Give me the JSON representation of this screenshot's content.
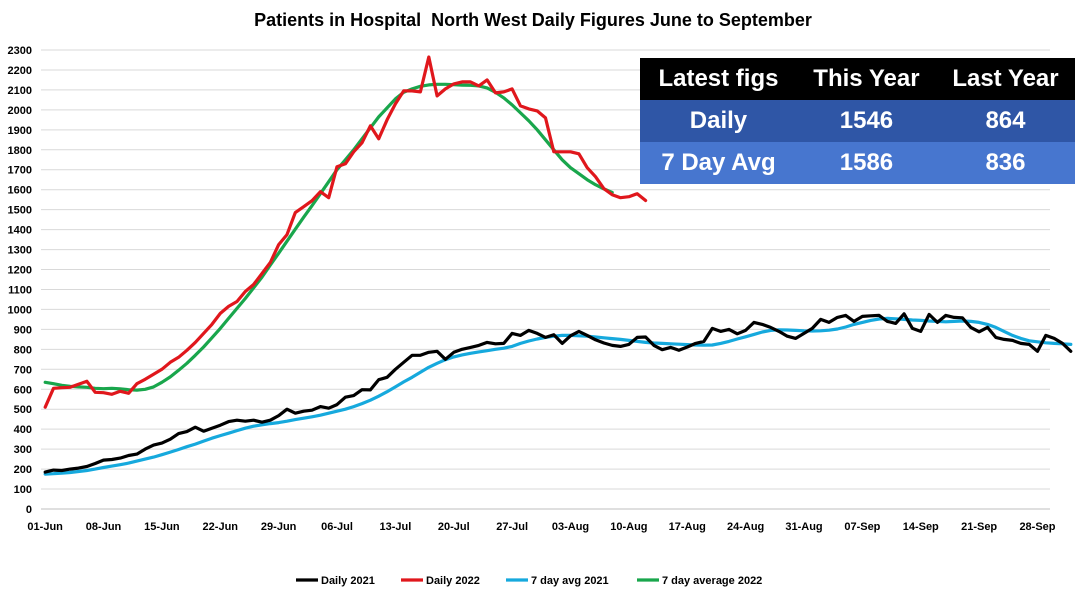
{
  "chart_data": {
    "type": "line",
    "title": "Patients in Hospital  North West Daily Figures June to September",
    "xlabel": "",
    "ylabel": "",
    "ylim": [
      0,
      2300
    ],
    "y_ticks": [
      0,
      100,
      200,
      300,
      400,
      500,
      600,
      700,
      800,
      900,
      1000,
      1100,
      1200,
      1300,
      1400,
      1500,
      1600,
      1700,
      1800,
      1900,
      2000,
      2100,
      2200,
      2300
    ],
    "x_ticks": [
      {
        "day": 0,
        "label": "01-Jun"
      },
      {
        "day": 7,
        "label": "08-Jun"
      },
      {
        "day": 14,
        "label": "15-Jun"
      },
      {
        "day": 21,
        "label": "22-Jun"
      },
      {
        "day": 28,
        "label": "29-Jun"
      },
      {
        "day": 35,
        "label": "06-Jul"
      },
      {
        "day": 42,
        "label": "13-Jul"
      },
      {
        "day": 49,
        "label": "20-Jul"
      },
      {
        "day": 56,
        "label": "27-Jul"
      },
      {
        "day": 63,
        "label": "03-Aug"
      },
      {
        "day": 70,
        "label": "10-Aug"
      },
      {
        "day": 77,
        "label": "17-Aug"
      },
      {
        "day": 84,
        "label": "24-Aug"
      },
      {
        "day": 91,
        "label": "31-Aug"
      },
      {
        "day": 98,
        "label": "07-Sep"
      },
      {
        "day": 105,
        "label": "14-Sep"
      },
      {
        "day": 112,
        "label": "21-Sep"
      },
      {
        "day": 119,
        "label": "28-Sep"
      }
    ],
    "x_days_total": 121,
    "grid": true,
    "legend_position": "bottom",
    "series": [
      {
        "name": "Daily 2021",
        "color": "#000000",
        "values": [
          185,
          195,
          193,
          200,
          205,
          213,
          228,
          245,
          248,
          255,
          268,
          275,
          300,
          320,
          330,
          350,
          378,
          388,
          410,
          390,
          405,
          420,
          438,
          445,
          440,
          445,
          435,
          445,
          468,
          500,
          480,
          490,
          495,
          513,
          505,
          523,
          560,
          568,
          598,
          597,
          648,
          660,
          700,
          735,
          770,
          770,
          785,
          790,
          750,
          785,
          800,
          810,
          820,
          835,
          828,
          830,
          880,
          870,
          895,
          880,
          860,
          873,
          830,
          868,
          890,
          870,
          848,
          832,
          820,
          815,
          825,
          860,
          862,
          820,
          798,
          810,
          795,
          812,
          830,
          840,
          905,
          890,
          900,
          878,
          895,
          935,
          925,
          910,
          890,
          866,
          855,
          880,
          905,
          950,
          935,
          960,
          970,
          940,
          965,
          968,
          970,
          940,
          930,
          978,
          905,
          890,
          975,
          935,
          970,
          960,
          958,
          910,
          888,
          910,
          860,
          850,
          845,
          830,
          825,
          790,
          870,
          855,
          830,
          790
        ]
      },
      {
        "name": "Daily 2022",
        "color": "#e0171c",
        "values": [
          510,
          605,
          608,
          610,
          625,
          640,
          585,
          583,
          575,
          590,
          580,
          628,
          650,
          675,
          700,
          735,
          760,
          795,
          835,
          880,
          925,
          980,
          1015,
          1040,
          1090,
          1125,
          1180,
          1235,
          1325,
          1375,
          1485,
          1515,
          1545,
          1590,
          1560,
          1715,
          1730,
          1790,
          1835,
          1920,
          1855,
          1950,
          2030,
          2095,
          2095,
          2090,
          2265,
          2070,
          2105,
          2130,
          2140,
          2140,
          2120,
          2150,
          2085,
          2090,
          2105,
          2020,
          2005,
          1995,
          1960,
          1790,
          1790,
          1790,
          1780,
          1710,
          1665,
          1605,
          1575,
          1560,
          1565,
          1580,
          1546
        ]
      },
      {
        "name": "7 day avg 2021",
        "color": "#16a9dd",
        "values": [
          175,
          177,
          180,
          183,
          188,
          193,
          200,
          208,
          215,
          222,
          230,
          240,
          250,
          260,
          272,
          285,
          298,
          312,
          325,
          340,
          355,
          368,
          380,
          393,
          405,
          415,
          422,
          428,
          433,
          440,
          448,
          455,
          462,
          470,
          480,
          490,
          500,
          513,
          528,
          545,
          565,
          588,
          612,
          637,
          660,
          685,
          710,
          730,
          748,
          762,
          772,
          780,
          787,
          793,
          800,
          806,
          815,
          830,
          842,
          852,
          860,
          866,
          870,
          870,
          868,
          866,
          862,
          858,
          854,
          850,
          845,
          840,
          835,
          832,
          830,
          828,
          826,
          824,
          822,
          821,
          822,
          830,
          840,
          852,
          863,
          875,
          887,
          895,
          898,
          897,
          895,
          893,
          892,
          893,
          896,
          902,
          912,
          925,
          935,
          945,
          952,
          955,
          953,
          950,
          947,
          945,
          942,
          940,
          938,
          940,
          942,
          940,
          935,
          925,
          910,
          890,
          870,
          855,
          843,
          838,
          833,
          830,
          828,
          825
        ]
      },
      {
        "name": "7 day average 2022",
        "color": "#19a64c",
        "values": [
          635,
          628,
          620,
          615,
          612,
          610,
          605,
          603,
          605,
          602,
          598,
          596,
          600,
          612,
          635,
          662,
          695,
          730,
          770,
          812,
          858,
          905,
          955,
          1005,
          1055,
          1108,
          1162,
          1222,
          1282,
          1342,
          1402,
          1462,
          1520,
          1580,
          1640,
          1700,
          1750,
          1800,
          1855,
          1910,
          1965,
          2010,
          2055,
          2088,
          2105,
          2118,
          2125,
          2128,
          2128,
          2126,
          2124,
          2123,
          2120,
          2110,
          2088,
          2060,
          2025,
          1985,
          1945,
          1900,
          1850,
          1800,
          1750,
          1710,
          1680,
          1650,
          1625,
          1604,
          1586
        ]
      }
    ],
    "stats_table": {
      "headers": [
        "Latest figs",
        "This Year",
        "Last Year"
      ],
      "rows": [
        [
          "Daily",
          "1546",
          "864"
        ],
        [
          "7 Day Avg",
          "1586",
          "836"
        ]
      ]
    }
  }
}
